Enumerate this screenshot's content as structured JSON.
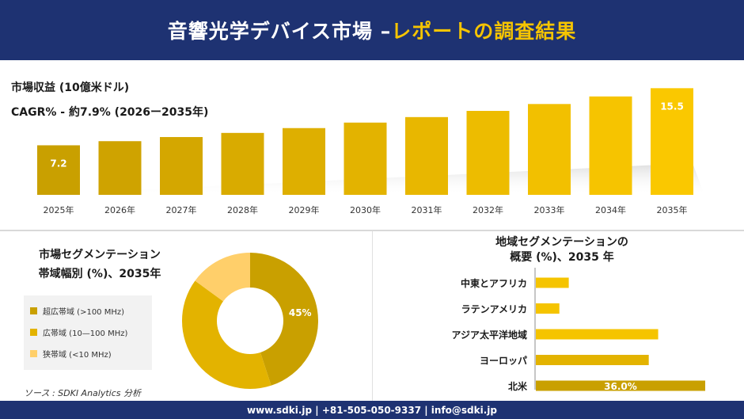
{
  "header": {
    "title_main": "音響光学デバイス市場 –",
    "title_accent": "レポートの調査結果"
  },
  "market_label": "市場収益 (10億米ドル)",
  "cagr_label": "CAGR% - 約7.9% (2026ー2035年)",
  "segmentation": {
    "title_line1": "市場セグメンテーション",
    "title_line2": "帯域幅別 (%)、2035年",
    "legend": [
      {
        "label": "超広帯域 (>100 MHz)",
        "color": "#c9a000"
      },
      {
        "label": "広帯域 (10—100 MHz)",
        "color": "#e3b300"
      },
      {
        "label": "狭帯域 (<10 MHz)",
        "color": "#ffcf6a"
      }
    ]
  },
  "source": "ソース : SDKI Analytics 分析",
  "region": {
    "title_line1": "地域セグメンテーションの",
    "title_line2": "概要 (%)、2035 年"
  },
  "footer": {
    "text": "www.sdki.jp | +81-505-050-9337 | info@sdki.jp"
  },
  "chart_data": [
    {
      "type": "bar",
      "title": "市場収益 (10億米ドル)",
      "categories": [
        "2025年",
        "2026年",
        "2027年",
        "2028年",
        "2029年",
        "2030年",
        "2031年",
        "2032年",
        "2033年",
        "2034年",
        "2035年"
      ],
      "values": [
        7.2,
        7.8,
        8.4,
        9.0,
        9.7,
        10.5,
        11.3,
        12.2,
        13.2,
        14.3,
        15.5
      ],
      "data_labels": {
        "0": "7.2",
        "10": "15.5"
      },
      "colors": [
        "#c9a000",
        "#cfa300",
        "#d4a700",
        "#d9ab00",
        "#deaf00",
        "#e3b300",
        "#e8b700",
        "#edbc00",
        "#f2c000",
        "#f6c400",
        "#fac800"
      ],
      "ylim": [
        0,
        16
      ]
    },
    {
      "type": "pie",
      "title": "帯域幅別 (%)、2035年",
      "labels": [
        "超広帯域 (>100 MHz)",
        "広帯域 (10—100 MHz)",
        "狭帯域 (<10 MHz)"
      ],
      "values": [
        45,
        40,
        15
      ],
      "data_labels": [
        "45%",
        "",
        ""
      ],
      "colors": [
        "#c9a000",
        "#e3b300",
        "#ffcf6a"
      ]
    },
    {
      "type": "bar",
      "orientation": "horizontal",
      "title": "地域セグメンテーションの概要 (%)、2035 年",
      "categories": [
        "中東とアフリカ",
        "ラテンアメリカ",
        "アジア太平洋地域",
        "ヨーロッパ",
        "北米"
      ],
      "values": [
        7.0,
        5.0,
        26.0,
        24.0,
        36.0
      ],
      "data_labels": [
        "",
        "",
        "",
        "",
        "36.0%"
      ],
      "colors": [
        "#f5c400",
        "#f5c400",
        "#f5c400",
        "#e3b300",
        "#c9a000"
      ],
      "xlim": [
        0,
        36
      ]
    }
  ]
}
